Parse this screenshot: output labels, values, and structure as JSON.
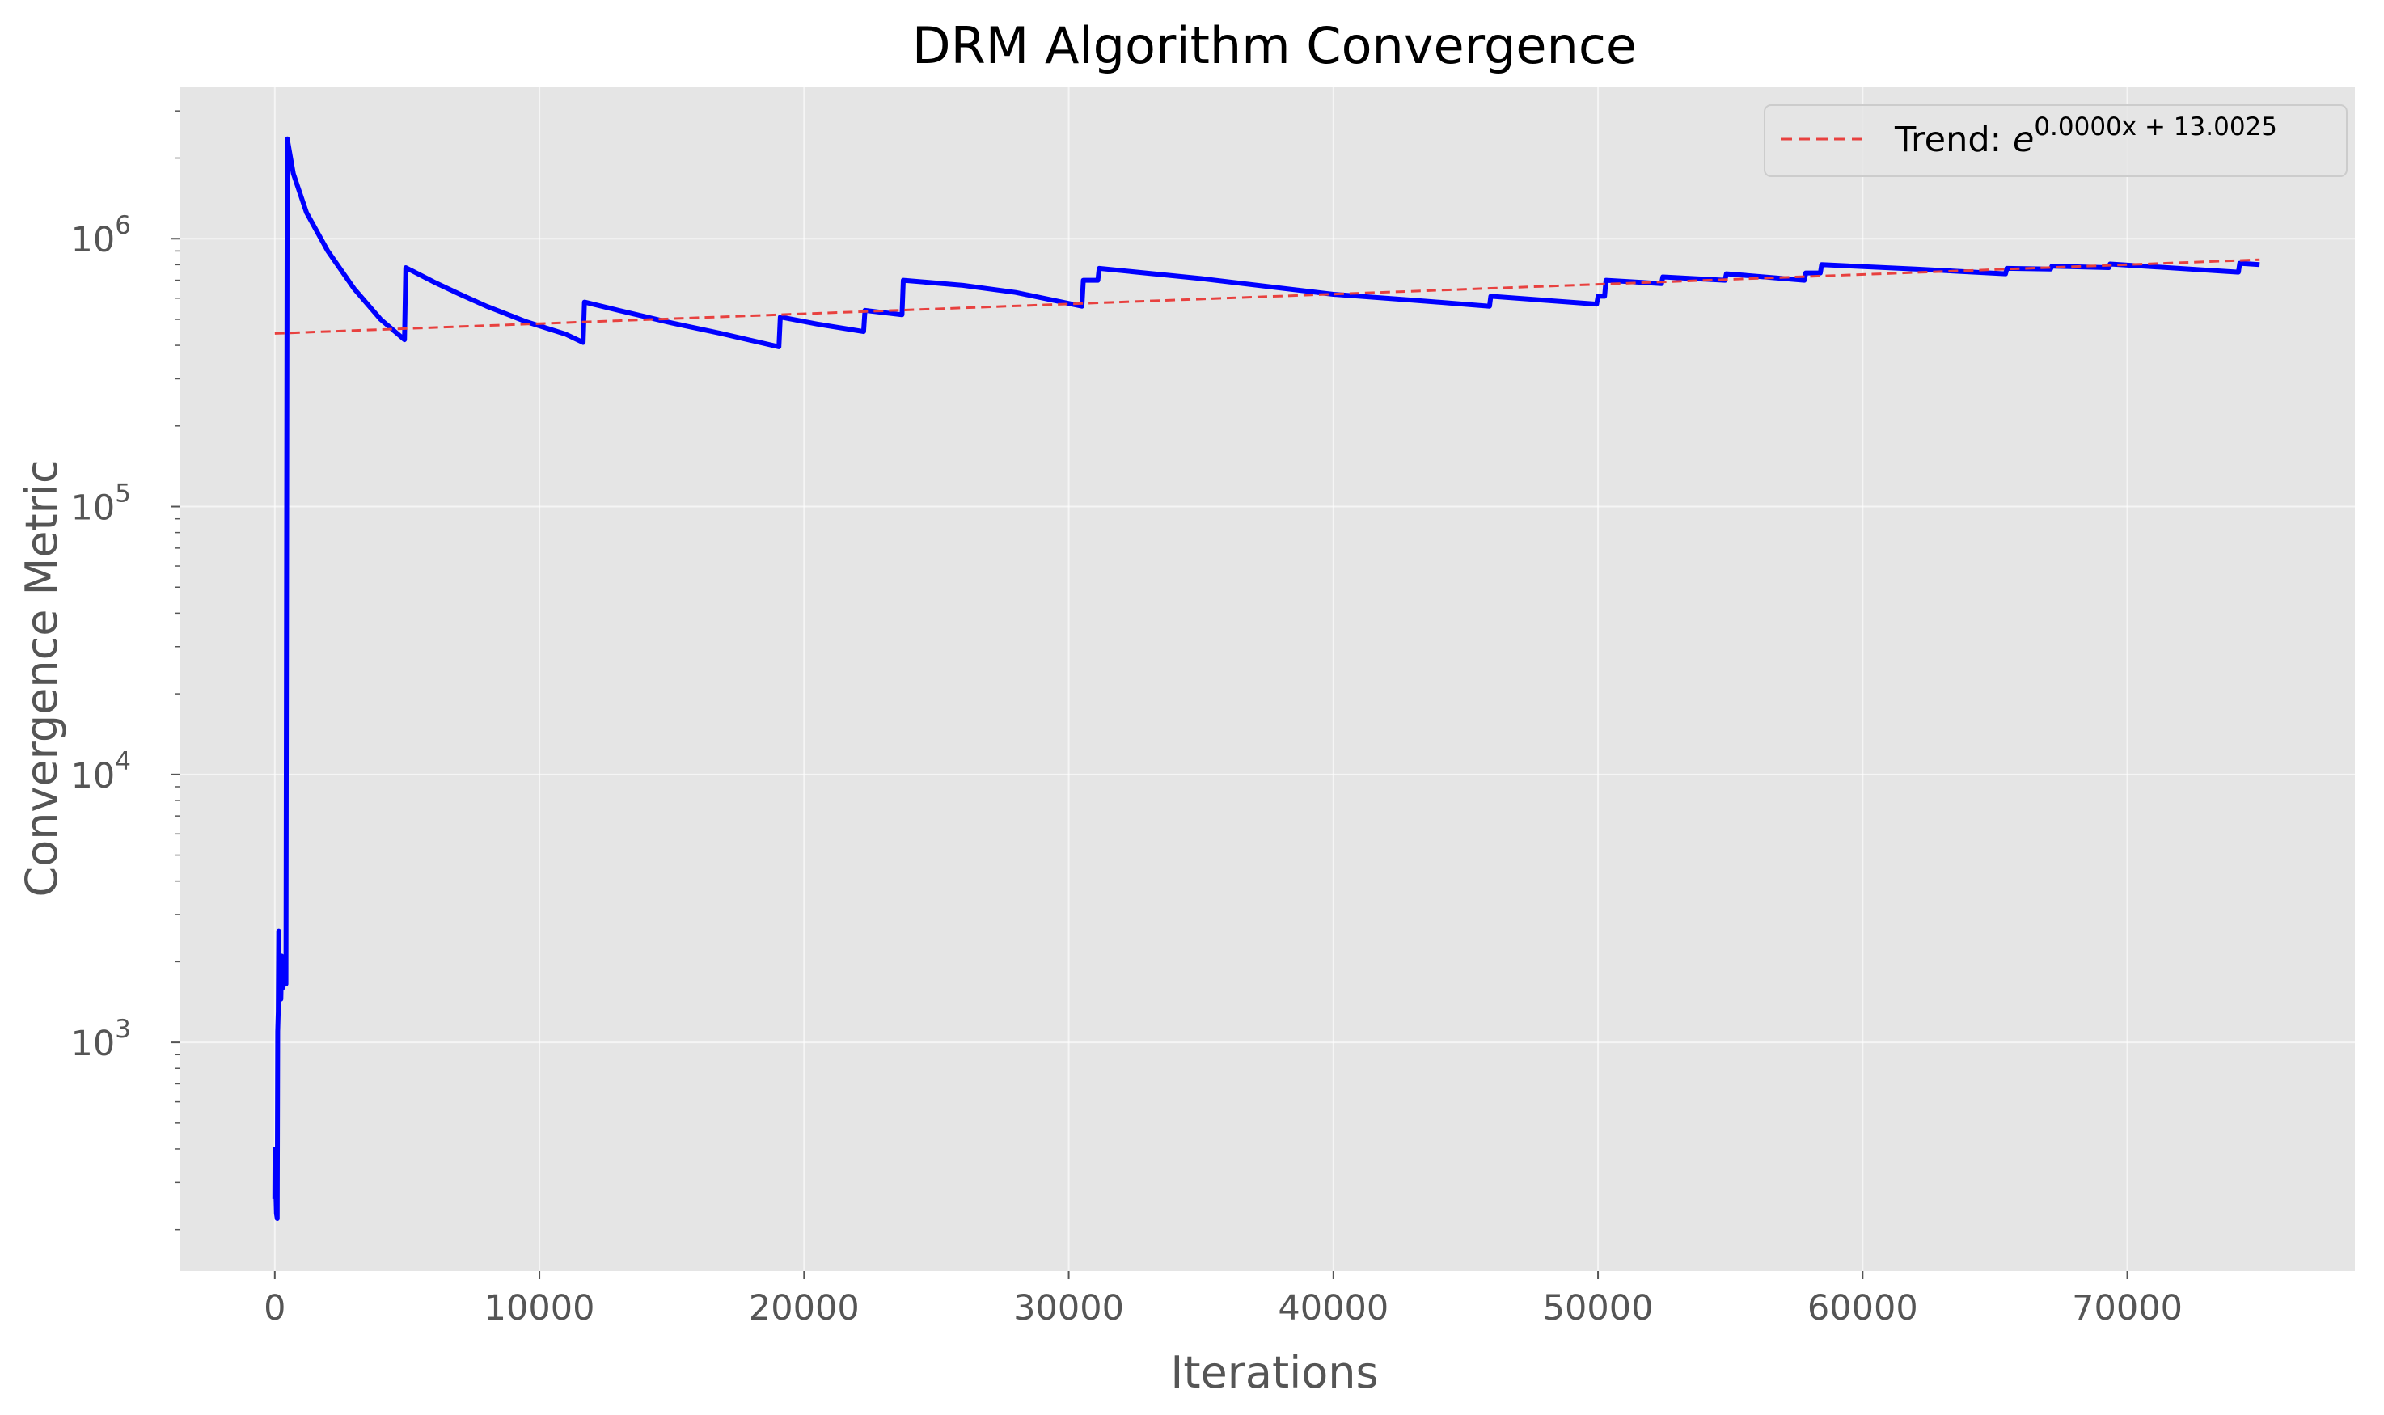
{
  "chart_data": {
    "type": "line",
    "title": "DRM Algorithm Convergence",
    "xlabel": "Iterations",
    "ylabel": "Convergence Metric",
    "xlim": [
      -3600,
      78600
    ],
    "ylim": [
      140,
      3700000
    ],
    "yscale": "log",
    "grid": true,
    "legend_position": "top-right",
    "xticks": [
      0,
      10000,
      20000,
      30000,
      40000,
      50000,
      60000,
      70000
    ],
    "xtick_labels": [
      "0",
      "10000",
      "20000",
      "30000",
      "40000",
      "50000",
      "60000",
      "70000"
    ],
    "yticks": [
      1000,
      10000,
      100000,
      1000000
    ],
    "ytick_labels": [
      {
        "base": "10",
        "exp": "3"
      },
      {
        "base": "10",
        "exp": "4"
      },
      {
        "base": "10",
        "exp": "5"
      },
      {
        "base": "10",
        "exp": "6"
      }
    ],
    "legend": {
      "prefix": "Trend: ",
      "base": "e",
      "exponent": "0.0000x + 13.0025"
    },
    "series": [
      {
        "style": "solid",
        "color": "#0000ff",
        "points": [
          [
            0,
            260
          ],
          [
            10,
            400
          ],
          [
            30,
            300
          ],
          [
            60,
            230
          ],
          [
            90,
            220
          ],
          [
            110,
            1100
          ],
          [
            130,
            1300
          ],
          [
            150,
            2600
          ],
          [
            170,
            1500
          ],
          [
            200,
            1900
          ],
          [
            230,
            1450
          ],
          [
            260,
            2100
          ],
          [
            300,
            1600
          ],
          [
            340,
            1700
          ],
          [
            380,
            2000
          ],
          [
            420,
            1650
          ],
          [
            470,
            2360000
          ],
          [
            700,
            1750000
          ],
          [
            1200,
            1250000
          ],
          [
            2000,
            900000
          ],
          [
            3000,
            650000
          ],
          [
            4000,
            500000
          ],
          [
            4900,
            420000
          ],
          [
            4950,
            780000
          ],
          [
            6000,
            690000
          ],
          [
            7000,
            620000
          ],
          [
            8000,
            560000
          ],
          [
            9500,
            490000
          ],
          [
            11000,
            440000
          ],
          [
            11650,
            410000
          ],
          [
            11700,
            580000
          ],
          [
            13000,
            540000
          ],
          [
            15000,
            485000
          ],
          [
            17000,
            440000
          ],
          [
            19050,
            395000
          ],
          [
            19100,
            510000
          ],
          [
            20500,
            480000
          ],
          [
            22250,
            450000
          ],
          [
            22300,
            540000
          ],
          [
            23700,
            520000
          ],
          [
            23750,
            700000
          ],
          [
            26000,
            670000
          ],
          [
            28000,
            630000
          ],
          [
            30500,
            560000
          ],
          [
            30550,
            700000
          ],
          [
            31100,
            700000
          ],
          [
            31150,
            775000
          ],
          [
            35000,
            710000
          ],
          [
            40000,
            620000
          ],
          [
            43000,
            590000
          ],
          [
            45900,
            560000
          ],
          [
            45950,
            610000
          ],
          [
            49950,
            570000
          ],
          [
            50000,
            610000
          ],
          [
            50250,
            610000
          ],
          [
            50300,
            700000
          ],
          [
            52400,
            680000
          ],
          [
            52450,
            720000
          ],
          [
            54800,
            700000
          ],
          [
            54850,
            740000
          ],
          [
            57800,
            700000
          ],
          [
            57850,
            745000
          ],
          [
            58400,
            745000
          ],
          [
            58450,
            800000
          ],
          [
            62000,
            770000
          ],
          [
            65400,
            740000
          ],
          [
            65450,
            775000
          ],
          [
            67100,
            770000
          ],
          [
            67150,
            790000
          ],
          [
            69300,
            780000
          ],
          [
            69350,
            805000
          ],
          [
            74200,
            750000
          ],
          [
            74250,
            810000
          ],
          [
            75000,
            800000
          ]
        ]
      },
      {
        "name": "Trend",
        "style": "dashed",
        "color": "#e8413f",
        "points": [
          [
            0,
            443000
          ],
          [
            75000,
            835000
          ]
        ]
      }
    ]
  }
}
